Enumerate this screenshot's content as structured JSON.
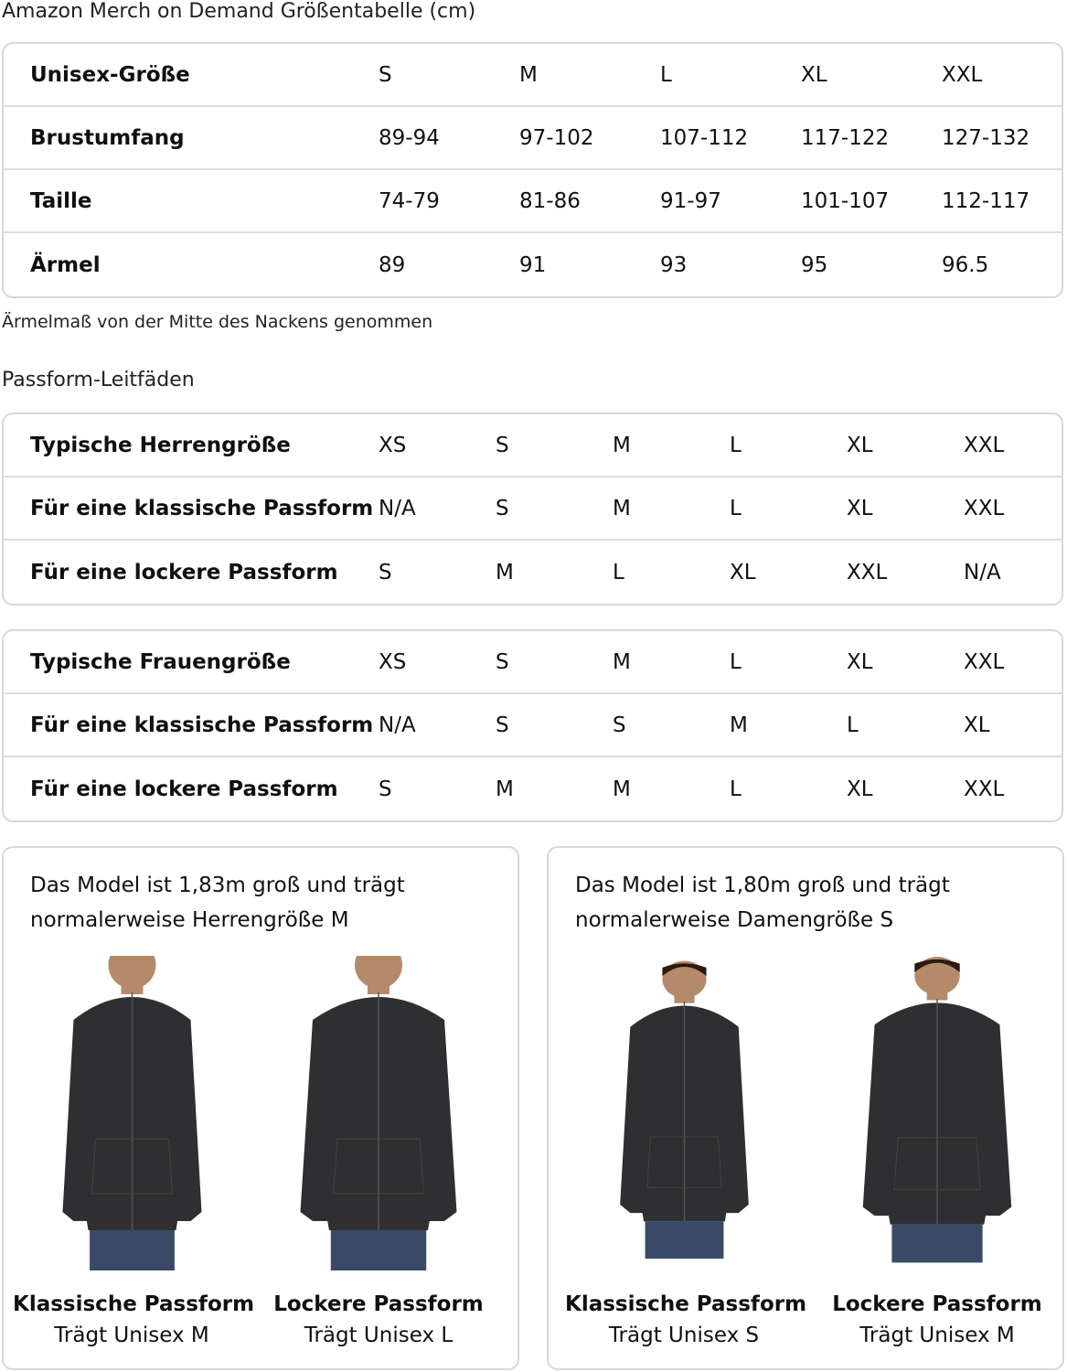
{
  "title": "Amazon Merch on Demand Größentabelle (cm)",
  "size_table": {
    "rows": [
      [
        "Unisex-Größe",
        "S",
        "M",
        "L",
        "XL",
        "XXL"
      ],
      [
        "Brustumfang",
        "89-94",
        "97-102",
        "107-112",
        "117-122",
        "127-132"
      ],
      [
        "Taille",
        "74-79",
        "81-86",
        "91-97",
        "101-107",
        "112-117"
      ],
      [
        "Ärmel",
        "89",
        "91",
        "93",
        "95",
        "96.5"
      ]
    ]
  },
  "note": "Ärmelmaß von der Mitte des Nackens genommen",
  "fit_title": "Passform-Leitfäden",
  "men_table": {
    "rows": [
      [
        "Typische Herrengröße",
        "XS",
        "S",
        "M",
        "L",
        "XL",
        "XXL"
      ],
      [
        "Für eine klassische Passform",
        "N/A",
        "S",
        "M",
        "L",
        "XL",
        "XXL"
      ],
      [
        "Für eine lockere Passform",
        "S",
        "M",
        "L",
        "XL",
        "XXL",
        "N/A"
      ]
    ]
  },
  "women_table": {
    "rows": [
      [
        "Typische Frauengröße",
        "XS",
        "S",
        "M",
        "L",
        "XL",
        "XXL"
      ],
      [
        "Für eine klassische Passform",
        "N/A",
        "S",
        "S",
        "M",
        "L",
        "XL"
      ],
      [
        "Für eine lockere Passform",
        "S",
        "M",
        "M",
        "L",
        "XL",
        "XXL"
      ]
    ]
  },
  "cards": [
    {
      "desc": "Das Model ist 1,83m groß und trägt normalerweise Herrengröße M",
      "figs": [
        {
          "title": "Klassische Passform",
          "sub": "Trägt Unisex M"
        },
        {
          "title": "Lockere Passform",
          "sub": "Trägt Unisex L"
        }
      ]
    },
    {
      "desc": "Das Model ist 1,80m groß und trägt normalerweise Damengröße S",
      "figs": [
        {
          "title": "Klassische Passform",
          "sub": "Trägt Unisex S"
        },
        {
          "title": "Lockere Passform",
          "sub": "Trägt Unisex M"
        }
      ]
    }
  ],
  "colors": {
    "border": "#d5d9d9",
    "hoodie": "#2f2f31",
    "jeans": "#3a4a66"
  }
}
